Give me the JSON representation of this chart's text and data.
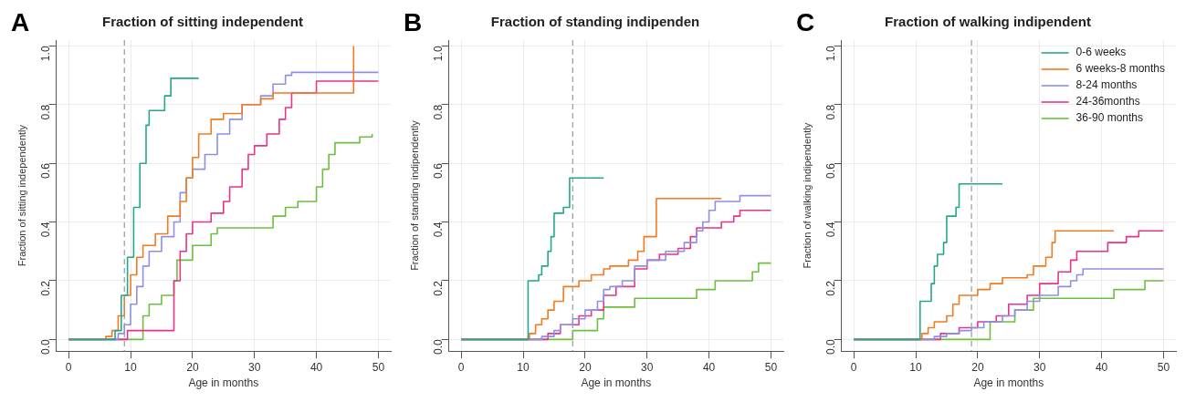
{
  "chart_data": [
    {
      "type": "step",
      "title": "Fraction of sitting independent",
      "xlabel": "Age in months",
      "ylabel": "Fraction of sitting independently",
      "annotations": [
        "A"
      ],
      "xlim": [
        -2,
        52
      ],
      "xticks": [
        0,
        10,
        20,
        30,
        40,
        50
      ],
      "ylim": [
        -0.04,
        1.02
      ],
      "yticks": [
        {
          "value": 0,
          "label": "0.0"
        },
        {
          "value": 0.2,
          "label": "0.2"
        },
        {
          "value": 0.4,
          "label": "0.4"
        },
        {
          "value": 0.6,
          "label": "0.6"
        },
        {
          "value": 0.8,
          "label": "0.8"
        },
        {
          "value": 1,
          "label": "1.0"
        }
      ],
      "grid": true,
      "legend": false,
      "ref_lines": [
        {
          "axis": "x",
          "value": 9,
          "color": "#999999",
          "line_style": "dashed"
        }
      ],
      "series": [
        {
          "color": "#23a88c",
          "x": [
            0,
            7.5,
            8.5,
            9.5,
            10.5,
            11.5,
            12.5,
            13,
            15.5,
            16.5,
            21
          ],
          "values": [
            0,
            0.03,
            0.15,
            0.28,
            0.45,
            0.6,
            0.73,
            0.78,
            0.83,
            0.89,
            0.89
          ]
        },
        {
          "color": "#f47a20",
          "x": [
            0,
            6,
            7,
            8,
            9,
            10,
            11,
            12,
            14,
            16,
            18,
            19,
            20,
            21,
            23,
            25,
            28,
            31,
            33,
            46
          ],
          "values": [
            0,
            0.01,
            0.03,
            0.08,
            0.15,
            0.22,
            0.28,
            0.32,
            0.36,
            0.42,
            0.47,
            0.55,
            0.62,
            0.7,
            0.75,
            0.77,
            0.8,
            0.82,
            0.84,
            1
          ]
        },
        {
          "color": "#8f8fe6",
          "x": [
            0,
            8,
            9,
            10,
            11,
            12,
            13,
            15,
            17,
            18,
            19,
            20,
            22,
            24,
            26,
            28,
            31,
            33,
            35,
            36,
            50
          ],
          "values": [
            0,
            0.02,
            0.05,
            0.12,
            0.18,
            0.25,
            0.3,
            0.35,
            0.4,
            0.5,
            0.55,
            0.58,
            0.63,
            0.7,
            0.75,
            0.8,
            0.83,
            0.87,
            0.9,
            0.91,
            0.91
          ]
        },
        {
          "color": "#e8338c",
          "x": [
            0,
            9.5,
            17,
            18,
            19,
            20,
            23,
            25,
            26,
            28,
            29,
            30,
            32,
            34,
            35,
            36,
            40,
            50
          ],
          "values": [
            0,
            0.03,
            0.2,
            0.3,
            0.36,
            0.4,
            0.43,
            0.47,
            0.52,
            0.58,
            0.63,
            0.66,
            0.7,
            0.75,
            0.79,
            0.84,
            0.88,
            0.88
          ]
        },
        {
          "color": "#6cbf3f",
          "x": [
            0,
            12,
            13,
            15,
            17,
            17.5,
            20,
            23,
            24,
            33,
            35,
            37,
            40,
            41,
            42,
            43,
            47,
            49
          ],
          "values": [
            0,
            0.08,
            0.12,
            0.15,
            0.2,
            0.27,
            0.32,
            0.36,
            0.38,
            0.42,
            0.45,
            0.47,
            0.52,
            0.58,
            0.63,
            0.67,
            0.69,
            0.7
          ]
        }
      ]
    },
    {
      "type": "step",
      "title": "Fraction of standing indipenden",
      "xlabel": "Age in months",
      "ylabel": "Fraction of standing indipendently",
      "annotations": [
        "B"
      ],
      "xlim": [
        -2,
        52
      ],
      "xticks": [
        0,
        10,
        20,
        30,
        40,
        50
      ],
      "ylim": [
        -0.04,
        1.02
      ],
      "yticks": [
        {
          "value": 0,
          "label": "0.0"
        },
        {
          "value": 0.2,
          "label": "0.2"
        },
        {
          "value": 0.4,
          "label": "0.4"
        },
        {
          "value": 0.6,
          "label": "0.6"
        },
        {
          "value": 0.8,
          "label": "0.8"
        },
        {
          "value": 1,
          "label": "1.0"
        }
      ],
      "grid": true,
      "legend": false,
      "ref_lines": [
        {
          "axis": "x",
          "value": 18,
          "color": "#999999",
          "line_style": "dashed"
        }
      ],
      "series": [
        {
          "color": "#23a88c",
          "x": [
            0,
            10.8,
            12.5,
            13,
            14,
            14.5,
            15,
            16.5,
            17.5,
            23
          ],
          "values": [
            0,
            0.2,
            0.22,
            0.25,
            0.3,
            0.35,
            0.43,
            0.45,
            0.55,
            0.55
          ]
        },
        {
          "color": "#f47a20",
          "x": [
            0,
            11,
            12,
            13,
            14,
            15,
            16.5,
            19,
            21,
            23,
            24,
            27,
            28.5,
            29.5,
            31.5,
            42
          ],
          "values": [
            0,
            0.02,
            0.05,
            0.07,
            0.1,
            0.13,
            0.18,
            0.2,
            0.22,
            0.24,
            0.25,
            0.27,
            0.3,
            0.35,
            0.48,
            0.48
          ]
        },
        {
          "color": "#8f8fe6",
          "x": [
            0,
            13,
            15,
            16,
            18,
            20,
            22,
            23,
            24,
            26,
            28,
            30,
            33,
            36,
            38,
            39,
            40,
            41,
            45,
            50
          ],
          "values": [
            0,
            0.01,
            0.03,
            0.05,
            0.07,
            0.1,
            0.13,
            0.17,
            0.18,
            0.2,
            0.25,
            0.27,
            0.3,
            0.33,
            0.37,
            0.4,
            0.44,
            0.47,
            0.49,
            0.49
          ]
        },
        {
          "color": "#e8338c",
          "x": [
            0,
            14,
            16,
            19,
            21,
            23,
            25,
            28,
            30,
            32,
            35,
            37,
            38,
            42,
            44,
            45,
            50
          ],
          "values": [
            0,
            0.02,
            0.05,
            0.08,
            0.1,
            0.15,
            0.18,
            0.24,
            0.27,
            0.29,
            0.31,
            0.35,
            0.38,
            0.4,
            0.42,
            0.44,
            0.44
          ]
        },
        {
          "color": "#6cbf3f",
          "x": [
            0,
            18,
            22,
            23,
            28,
            38,
            41,
            47,
            48,
            50
          ],
          "values": [
            0,
            0.03,
            0.07,
            0.11,
            0.14,
            0.17,
            0.2,
            0.23,
            0.26,
            0.26
          ]
        }
      ]
    },
    {
      "type": "step",
      "title": "Fraction of walking indipendent",
      "xlabel": "Age in months",
      "ylabel": "Fraction of walking indipendently",
      "annotations": [
        "C"
      ],
      "xlim": [
        -2,
        52
      ],
      "xticks": [
        0,
        10,
        20,
        30,
        40,
        50
      ],
      "ylim": [
        -0.04,
        1.02
      ],
      "yticks": [
        {
          "value": 0,
          "label": "0.0"
        },
        {
          "value": 0.2,
          "label": "0.2"
        },
        {
          "value": 0.4,
          "label": "0.4"
        },
        {
          "value": 0.6,
          "label": "0.6"
        },
        {
          "value": 0.8,
          "label": "0.8"
        },
        {
          "value": 1,
          "label": "1.0"
        }
      ],
      "grid": true,
      "legend": "top right",
      "ref_lines": [
        {
          "axis": "x",
          "value": 19,
          "color": "#999999",
          "line_style": "dashed"
        }
      ],
      "series": [
        {
          "name": "0-6 weeks",
          "color": "#23a88c",
          "x": [
            0,
            10.7,
            12.5,
            13,
            13.5,
            14.5,
            15,
            16.5,
            17,
            24
          ],
          "values": [
            0,
            0.13,
            0.19,
            0.25,
            0.29,
            0.33,
            0.42,
            0.45,
            0.53,
            0.53
          ]
        },
        {
          "name": "6 weeks-8 months",
          "color": "#f47a20",
          "x": [
            0,
            11,
            12,
            13,
            15,
            16,
            17,
            20,
            22,
            24,
            28,
            29,
            31,
            32,
            32.5,
            42
          ],
          "values": [
            0,
            0.02,
            0.04,
            0.06,
            0.08,
            0.12,
            0.15,
            0.17,
            0.19,
            0.21,
            0.22,
            0.25,
            0.28,
            0.33,
            0.37,
            0.37
          ]
        },
        {
          "name": "8-24 months",
          "color": "#8f8fe6",
          "x": [
            0,
            13,
            15,
            17,
            19,
            21,
            24,
            26,
            28,
            30,
            33,
            35,
            36,
            37,
            50
          ],
          "values": [
            0,
            0.01,
            0.02,
            0.03,
            0.04,
            0.06,
            0.08,
            0.1,
            0.13,
            0.15,
            0.18,
            0.2,
            0.22,
            0.24,
            0.24
          ]
        },
        {
          "name": "24-36months",
          "color": "#e8338c",
          "x": [
            0,
            14,
            17,
            20,
            23,
            25,
            28,
            30,
            33,
            35,
            36,
            41,
            44,
            46,
            50
          ],
          "values": [
            0,
            0.02,
            0.04,
            0.06,
            0.08,
            0.12,
            0.15,
            0.19,
            0.23,
            0.27,
            0.3,
            0.33,
            0.35,
            0.37,
            0.37
          ]
        },
        {
          "name": "36-90 months",
          "color": "#6cbf3f",
          "x": [
            0,
            22,
            26,
            29,
            42,
            47,
            50
          ],
          "values": [
            0,
            0.06,
            0.1,
            0.14,
            0.17,
            0.2,
            0.2
          ]
        }
      ]
    }
  ]
}
